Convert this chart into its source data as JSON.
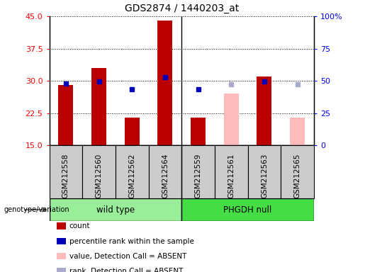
{
  "title": "GDS2874 / 1440203_at",
  "samples": [
    "GSM212558",
    "GSM212560",
    "GSM212562",
    "GSM212564",
    "GSM212559",
    "GSM212561",
    "GSM212563",
    "GSM212565"
  ],
  "count_values": [
    29.0,
    33.0,
    21.5,
    44.0,
    21.5,
    27.0,
    31.0,
    21.5
  ],
  "rank_values": [
    48.0,
    49.5,
    43.5,
    53.0,
    43.5,
    47.5,
    49.5,
    47.5
  ],
  "absent_flags": [
    false,
    false,
    false,
    false,
    false,
    true,
    false,
    true
  ],
  "y_min": 15,
  "y_max": 45,
  "y_ticks": [
    15,
    22.5,
    30,
    37.5,
    45
  ],
  "y2_ticks": [
    0,
    25,
    50,
    75,
    100
  ],
  "bar_color_normal": "#bb0000",
  "bar_color_absent": "#ffbbbb",
  "marker_color_normal": "#0000bb",
  "marker_color_absent": "#aaaacc",
  "group_color_wild": "#99ee99",
  "group_color_phgdh": "#44dd44",
  "group_label_wild": "wild type",
  "group_label_phgdh": "PHGDH null",
  "bar_width": 0.45,
  "legend_items": [
    {
      "color": "#bb0000",
      "label": "count"
    },
    {
      "color": "#0000bb",
      "label": "percentile rank within the sample"
    },
    {
      "color": "#ffbbbb",
      "label": "value, Detection Call = ABSENT"
    },
    {
      "color": "#aaaacc",
      "label": "rank, Detection Call = ABSENT"
    }
  ]
}
